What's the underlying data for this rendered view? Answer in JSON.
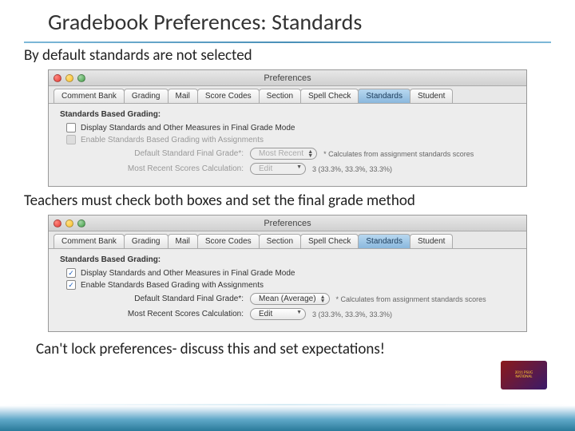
{
  "slide": {
    "title": "Gradebook Preferences:  Standards",
    "text1": "By default standards are not selected",
    "text2": "Teachers must check both boxes and set the final grade method",
    "text3": "Can't lock preferences- discuss this and set expectations!"
  },
  "window": {
    "title": "Preferences",
    "tabs": [
      "Comment Bank",
      "Grading",
      "Mail",
      "Score Codes",
      "Section",
      "Spell Check",
      "Standards",
      "Student"
    ],
    "active_tab_index": 6,
    "section_header": "Standards Based Grading:",
    "check1_label": "Display Standards and Other Measures in Final Grade Mode",
    "check2_label": "Enable Standards Based Grading with Assignments",
    "default_grade_label": "Default Standard Final Grade*:",
    "recent_calc_label": "Most Recent Scores Calculation:",
    "hint_calc": "* Calculates from assignment standards scores",
    "recent_hint": "3 (33.3%, 33.3%, 33.3%)"
  },
  "pane1": {
    "check1_checked": false,
    "check2_enabled": false,
    "default_value": "Most Recent",
    "edit_value": "Edit"
  },
  "pane2": {
    "check1_checked": true,
    "check2_checked": true,
    "default_value": "Mean (Average)",
    "edit_value": "Edit"
  },
  "colors": {
    "accent": "#4a90b8",
    "tab_active_bg": "#8ab8dd"
  }
}
